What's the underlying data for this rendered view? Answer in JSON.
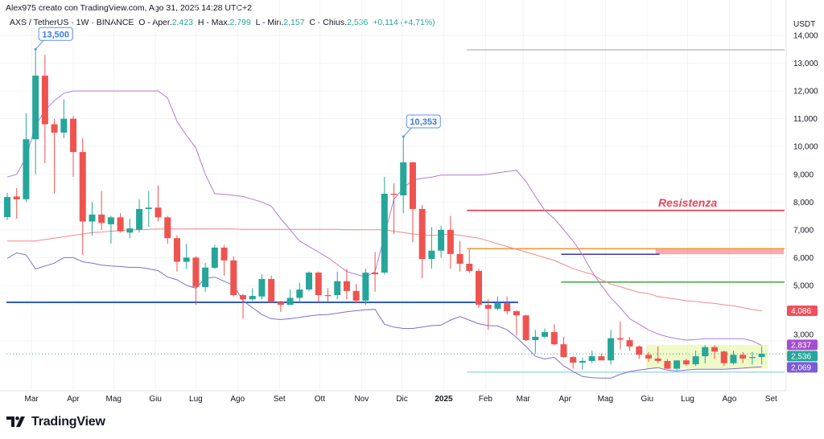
{
  "header": {
    "credit": "Alex975 creato con TradingView.com, Ago 31, 2025 14:28 UTC+2",
    "symbol": "AXS / TetherUS · 1W · BINANCE",
    "open_label": "O - Aper.",
    "open": "2,423",
    "high_label": "H - Max.",
    "high": "2,799",
    "low_label": "L - Min.",
    "low": "2,157",
    "close_label": "C - Chius.",
    "close": "2,536",
    "change": "+0,114 (+4,71%)"
  },
  "logo": {
    "text": "TradingView"
  },
  "colors": {
    "up": "#26a69a",
    "down": "#ef5350",
    "bb_upper": "#b27ad6",
    "bb_mid": "#f08a8a",
    "bb_lower": "#7b6fd3"
  },
  "chart_data": {
    "type": "candlestick",
    "interval": "1W",
    "currency": "USDT",
    "ylim": [
      1.2,
      14.5
    ],
    "grid": true,
    "y_ticks": [
      "14,000",
      "13,000",
      "12,000",
      "11,000",
      "10,000",
      "9,000",
      "8,000",
      "7,000",
      "6,000",
      "5,000",
      "3,000"
    ],
    "y_tick_values": [
      14,
      13,
      12,
      11,
      10,
      9,
      8,
      7,
      6,
      5,
      3
    ],
    "x_ticks": [
      {
        "label": "Mar",
        "date": "2024-03-01"
      },
      {
        "label": "Apr",
        "date": "2024-04-01"
      },
      {
        "label": "Mag",
        "date": "2024-05-01"
      },
      {
        "label": "Giu",
        "date": "2024-06-01"
      },
      {
        "label": "Lug",
        "date": "2024-07-01"
      },
      {
        "label": "Ago",
        "date": "2024-08-01"
      },
      {
        "label": "Set",
        "date": "2024-09-01"
      },
      {
        "label": "Ott",
        "date": "2024-10-01"
      },
      {
        "label": "Nov",
        "date": "2024-11-01"
      },
      {
        "label": "Dic",
        "date": "2024-12-01"
      },
      {
        "label": "2025",
        "date": "2025-01-01",
        "bold": true
      },
      {
        "label": "Feb",
        "date": "2025-02-01"
      },
      {
        "label": "Mar",
        "date": "2025-03-01"
      },
      {
        "label": "Apr",
        "date": "2025-04-01"
      },
      {
        "label": "Mag",
        "date": "2025-05-01"
      },
      {
        "label": "Giu",
        "date": "2025-06-01"
      },
      {
        "label": "Lug",
        "date": "2025-07-01"
      },
      {
        "label": "Ago",
        "date": "2025-08-01"
      },
      {
        "label": "Set",
        "date": "2025-09-01"
      }
    ],
    "candles_columns": [
      "date",
      "open",
      "high",
      "low",
      "close"
    ],
    "candles": [
      [
        "2024-02-12",
        7.46,
        8.33,
        7.35,
        8.18
      ],
      [
        "2024-02-19",
        8.2,
        8.5,
        7.4,
        8.1
      ],
      [
        "2024-02-26",
        8.1,
        11.2,
        8.0,
        10.26
      ],
      [
        "2024-03-04",
        10.26,
        13.5,
        9.0,
        12.55
      ],
      [
        "2024-03-11",
        12.55,
        13.3,
        9.4,
        10.8
      ],
      [
        "2024-03-18",
        10.8,
        11.0,
        8.3,
        10.5
      ],
      [
        "2024-03-25",
        10.5,
        11.7,
        10.3,
        11.0
      ],
      [
        "2024-04-01",
        11.0,
        11.1,
        8.9,
        9.8
      ],
      [
        "2024-04-08",
        9.8,
        10.3,
        6.1,
        7.3
      ],
      [
        "2024-04-15",
        7.3,
        8.0,
        6.8,
        7.55
      ],
      [
        "2024-04-22",
        7.55,
        8.4,
        7.0,
        7.25
      ],
      [
        "2024-04-29",
        7.2,
        7.5,
        6.5,
        7.45
      ],
      [
        "2024-05-06",
        7.45,
        7.6,
        6.9,
        6.95
      ],
      [
        "2024-05-13",
        6.9,
        7.4,
        6.7,
        7.05
      ],
      [
        "2024-05-20",
        7.0,
        8.1,
        6.9,
        7.75
      ],
      [
        "2024-05-27",
        7.75,
        8.4,
        7.1,
        7.8
      ],
      [
        "2024-06-03",
        7.8,
        8.6,
        7.3,
        7.45
      ],
      [
        "2024-06-10",
        7.45,
        7.5,
        6.5,
        6.7
      ],
      [
        "2024-06-17",
        6.7,
        6.8,
        5.5,
        5.85
      ],
      [
        "2024-06-24",
        5.85,
        6.5,
        5.6,
        6.0
      ],
      [
        "2024-07-01",
        6.0,
        6.05,
        4.3,
        4.95
      ],
      [
        "2024-07-08",
        4.94,
        5.81,
        4.77,
        5.64
      ],
      [
        "2024-07-15",
        5.63,
        6.45,
        5.6,
        6.36
      ],
      [
        "2024-07-22",
        6.36,
        6.45,
        5.35,
        5.9
      ],
      [
        "2024-07-29",
        5.9,
        6.05,
        4.6,
        4.65
      ],
      [
        "2024-08-05",
        4.65,
        4.7,
        3.8,
        4.5
      ],
      [
        "2024-08-12",
        4.5,
        4.9,
        4.45,
        4.62
      ],
      [
        "2024-08-19",
        4.6,
        5.4,
        4.5,
        5.23
      ],
      [
        "2024-08-26",
        5.23,
        5.35,
        4.4,
        4.4
      ],
      [
        "2024-09-02",
        4.4,
        4.45,
        4.05,
        4.3
      ],
      [
        "2024-09-09",
        4.3,
        4.85,
        4.3,
        4.55
      ],
      [
        "2024-09-16",
        4.55,
        5.1,
        4.4,
        4.85
      ],
      [
        "2024-09-23",
        4.85,
        5.5,
        4.8,
        5.46
      ],
      [
        "2024-09-30",
        5.46,
        5.5,
        4.4,
        4.65
      ],
      [
        "2024-10-07",
        4.65,
        4.9,
        4.4,
        4.62
      ],
      [
        "2024-10-14",
        4.65,
        5.5,
        4.5,
        5.15
      ],
      [
        "2024-10-21",
        5.15,
        5.6,
        4.5,
        4.8
      ],
      [
        "2024-10-28",
        4.8,
        5.05,
        4.35,
        4.45
      ],
      [
        "2024-11-04",
        4.45,
        5.6,
        4.3,
        5.46
      ],
      [
        "2024-11-11",
        5.46,
        6.2,
        4.77,
        5.4
      ],
      [
        "2024-11-18",
        5.46,
        8.9,
        5.4,
        8.3
      ],
      [
        "2024-11-25",
        8.3,
        8.67,
        6.85,
        8.26
      ],
      [
        "2024-12-02",
        8.24,
        10.353,
        7.6,
        9.43
      ],
      [
        "2024-12-09",
        9.43,
        9.45,
        6.55,
        7.75
      ],
      [
        "2024-12-16",
        7.75,
        7.9,
        5.26,
        5.95
      ],
      [
        "2024-12-23",
        5.95,
        7.1,
        5.6,
        6.25
      ],
      [
        "2024-12-30",
        6.25,
        7.15,
        6.0,
        7.0
      ],
      [
        "2025-01-06",
        7.0,
        7.5,
        5.6,
        6.13
      ],
      [
        "2025-01-13",
        6.13,
        6.6,
        5.5,
        5.78
      ],
      [
        "2025-01-20",
        5.78,
        6.3,
        5.45,
        5.52
      ],
      [
        "2025-01-27",
        5.52,
        5.6,
        4.2,
        4.3
      ],
      [
        "2025-02-03",
        4.3,
        4.5,
        3.4,
        4.16
      ],
      [
        "2025-02-10",
        4.16,
        4.6,
        4.1,
        4.36
      ],
      [
        "2025-02-17",
        4.36,
        4.6,
        3.95,
        4.07
      ],
      [
        "2025-02-24",
        4.07,
        4.1,
        3.2,
        3.92
      ],
      [
        "2025-03-03",
        3.92,
        3.95,
        3.0,
        3.03
      ],
      [
        "2025-03-10",
        3.03,
        3.4,
        2.55,
        3.15
      ],
      [
        "2025-03-17",
        3.15,
        3.45,
        3.1,
        3.32
      ],
      [
        "2025-03-24",
        3.32,
        3.6,
        2.85,
        2.88
      ],
      [
        "2025-03-31",
        2.88,
        3.15,
        2.4,
        2.42
      ],
      [
        "2025-04-07",
        2.42,
        2.45,
        2.0,
        2.22
      ],
      [
        "2025-04-14",
        2.22,
        2.4,
        1.98,
        2.28
      ],
      [
        "2025-04-21",
        2.28,
        2.65,
        2.2,
        2.45
      ],
      [
        "2025-04-28",
        2.45,
        2.55,
        2.3,
        2.3
      ],
      [
        "2025-05-05",
        2.3,
        3.4,
        2.15,
        3.1
      ],
      [
        "2025-05-12",
        3.1,
        3.7,
        2.7,
        3.05
      ],
      [
        "2025-05-19",
        3.03,
        3.15,
        2.65,
        2.8
      ],
      [
        "2025-05-26",
        2.8,
        2.85,
        2.35,
        2.5
      ],
      [
        "2025-06-02",
        2.5,
        2.6,
        2.25,
        2.37
      ],
      [
        "2025-06-09",
        2.37,
        2.8,
        2.2,
        2.28
      ],
      [
        "2025-06-16",
        2.28,
        2.35,
        1.98,
        2.0
      ],
      [
        "2025-06-23",
        2.0,
        2.3,
        1.95,
        2.3
      ],
      [
        "2025-06-30",
        2.3,
        2.35,
        2.1,
        2.16
      ],
      [
        "2025-07-07",
        2.16,
        2.65,
        2.1,
        2.45
      ],
      [
        "2025-07-14",
        2.45,
        2.85,
        2.2,
        2.78
      ],
      [
        "2025-07-21",
        2.78,
        2.85,
        2.35,
        2.62
      ],
      [
        "2025-07-28",
        2.62,
        2.65,
        2.1,
        2.2
      ],
      [
        "2025-08-04",
        2.2,
        2.65,
        2.15,
        2.5
      ],
      [
        "2025-08-11",
        2.5,
        2.6,
        2.2,
        2.37
      ],
      [
        "2025-08-18",
        2.4,
        2.6,
        2.15,
        2.42
      ],
      [
        "2025-08-25",
        2.423,
        2.799,
        2.157,
        2.536
      ]
    ],
    "bollinger": {
      "upper": [
        8.9,
        9.0,
        9.6,
        10.76,
        11.3,
        11.65,
        11.92,
        12.0,
        12.0,
        12.0,
        12.0,
        12.0,
        12.0,
        12.0,
        12.0,
        12.0,
        12.0,
        11.75,
        10.9,
        10.4,
        9.95,
        9.0,
        8.3,
        8.28,
        8.24,
        8.2,
        8.1,
        8.0,
        7.85,
        7.4,
        7.0,
        6.6,
        6.4,
        6.2,
        6.0,
        5.75,
        5.5,
        5.4,
        5.3,
        5.5,
        6.8,
        8.1,
        8.5,
        8.8,
        8.85,
        8.9,
        8.97,
        8.97,
        8.97,
        8.97,
        8.97,
        9.0,
        9.05,
        9.1,
        9.14,
        8.75,
        8.2,
        7.7,
        7.4,
        7.0,
        6.6,
        6.1,
        5.5,
        5.0,
        4.55,
        4.2,
        3.8,
        3.6,
        3.4,
        3.25,
        3.15,
        3.08,
        3.03,
        3.05,
        3.08,
        3.08,
        3.08,
        3.08,
        3.08,
        3.0,
        2.837
      ],
      "middle": [
        6.6,
        6.6,
        6.6,
        6.6,
        6.65,
        6.7,
        6.75,
        6.8,
        6.85,
        6.9,
        6.92,
        6.95,
        6.97,
        7.0,
        7.0,
        7.02,
        7.03,
        7.03,
        7.03,
        7.03,
        7.03,
        7.03,
        7.03,
        7.03,
        7.03,
        7.02,
        7.02,
        7.02,
        7.02,
        7.02,
        7.02,
        7.02,
        7.02,
        7.02,
        7.02,
        7.02,
        7.0,
        7.0,
        7.0,
        7.0,
        7.0,
        6.95,
        6.9,
        6.85,
        6.82,
        6.8,
        6.82,
        6.85,
        6.8,
        6.75,
        6.7,
        6.6,
        6.5,
        6.4,
        6.3,
        6.2,
        6.1,
        6.0,
        5.9,
        5.75,
        5.6,
        5.5,
        5.4,
        5.2,
        5.05,
        4.95,
        4.85,
        4.75,
        4.7,
        4.6,
        4.55,
        4.5,
        4.45,
        4.42,
        4.38,
        4.35,
        4.3,
        4.27,
        4.2,
        4.13,
        4.086
      ],
      "lower": [
        5.97,
        6.17,
        6.1,
        5.59,
        5.7,
        5.8,
        6.0,
        6.0,
        5.85,
        5.8,
        5.73,
        5.7,
        5.68,
        5.65,
        5.65,
        5.6,
        5.53,
        5.3,
        5.2,
        5.0,
        4.9,
        5.25,
        5.3,
        5.15,
        5.0,
        4.45,
        4.2,
        3.95,
        3.8,
        3.77,
        3.8,
        3.85,
        3.9,
        3.94,
        3.95,
        4.0,
        4.05,
        4.09,
        4.12,
        4.14,
        3.6,
        3.5,
        3.45,
        3.45,
        3.5,
        3.55,
        3.57,
        3.75,
        3.88,
        3.75,
        3.62,
        3.55,
        3.54,
        3.4,
        3.13,
        2.8,
        2.45,
        2.35,
        2.41,
        2.1,
        1.9,
        1.72,
        1.68,
        1.66,
        1.66,
        1.8,
        1.9,
        1.95,
        2.0,
        2.04,
        1.95,
        1.92,
        1.95,
        1.98,
        1.98,
        1.98,
        1.98,
        2.0,
        2.02,
        2.05,
        2.069
      ]
    },
    "horizontal_lines": [
      {
        "name": "support",
        "price": 4.39,
        "from": "2024-02-12",
        "to": "2025-02-24",
        "color": "#2f5bc4"
      },
      {
        "name": "high-level",
        "price": 13.48,
        "from": "2025-01-20",
        "color": "#c4c4c4"
      },
      {
        "name": "resistance",
        "price": 7.7,
        "from": "2025-01-20",
        "color": "#d9394a"
      },
      {
        "name": "orange-level",
        "price": 6.32,
        "from": "2025-01-20",
        "color": "#f29a3a"
      },
      {
        "name": "blue-level",
        "price": 6.12,
        "from": "2025-03-31",
        "to": "2025-06-09",
        "color": "#3a36b8"
      },
      {
        "name": "green-level",
        "price": 5.12,
        "from": "2025-03-31",
        "color": "#4caf50"
      },
      {
        "name": "bottom-level",
        "price": 1.88,
        "from": "2025-01-20",
        "color": "#a6dbe6"
      }
    ],
    "zones": [
      {
        "name": "resistance-zone",
        "from": "2025-06-09",
        "top": 6.32,
        "bottom": 6.12,
        "color": "rgba(239,90,100,0.5)"
      },
      {
        "name": "range-zone",
        "from": "2025-06-02",
        "to": "2025-08-25",
        "top": 2.86,
        "bottom": 2.0,
        "color": "rgba(215,238,110,0.38)"
      }
    ],
    "annotations": {
      "resistance_text": "Resistenza",
      "callouts": [
        {
          "text": "13,500",
          "date": "2024-03-04",
          "price": 13.5
        },
        {
          "text": "10,353",
          "date": "2024-12-02",
          "price": 10.353
        }
      ]
    },
    "axis_labels": [
      {
        "text": "4,086",
        "price": 4.086,
        "color": "#f0505c"
      },
      {
        "text": "2,837",
        "price": 2.86,
        "color": "#a64ccf"
      },
      {
        "text": "2,536",
        "price": 2.536,
        "color": "#26a69a"
      },
      {
        "text": "2,069",
        "price": 2.069,
        "color": "#7b5bd6"
      }
    ],
    "last_price": 2.536
  }
}
